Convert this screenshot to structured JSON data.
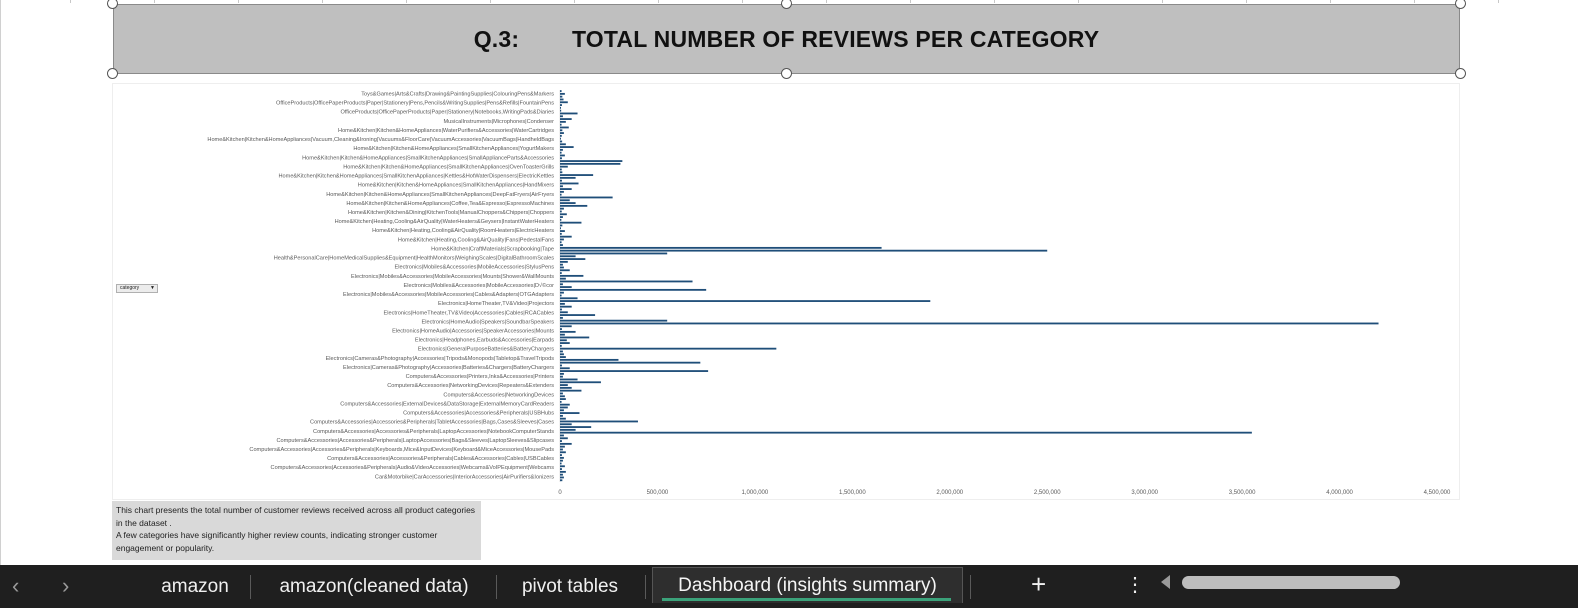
{
  "title": "Q.3:        TOTAL NUMBER OF REVIEWS PER CATEGORY",
  "filter_button": {
    "label": "category"
  },
  "note": {
    "line1": "This chart presents the total number of customer reviews received across all product categories in the dataset .",
    "line2": " A few categories have significantly higher review counts, indicating stronger customer engagement or popularity."
  },
  "sheet_tabs": [
    {
      "label": "amazon",
      "active": false
    },
    {
      "label": "amazon(cleaned data)",
      "active": false
    },
    {
      "label": "pivot tables",
      "active": false
    },
    {
      "label": "Dashboard (insights summary)",
      "active": true
    }
  ],
  "controls": {
    "prev_icon": "chevron-left-icon",
    "next_icon": "chevron-right-icon",
    "add_label": "+",
    "more_label": "⋮"
  },
  "colors": {
    "bar": "#1f4e79",
    "title_bg": "#bfbfbf",
    "tab_bar_bg": "#1f1f1f",
    "active_tab_underline": "#3ba27a"
  },
  "chart_data": {
    "type": "bar",
    "orientation": "horizontal",
    "title": "",
    "xlabel": "",
    "ylabel": "",
    "xlim": [
      0,
      4500000
    ],
    "x_ticks": [
      "0",
      "500,000",
      "1,000,000",
      "1,500,000",
      "2,000,000",
      "2,500,000",
      "3,000,000",
      "3,500,000",
      "4,000,000",
      "4,500,000"
    ],
    "x_tick_values": [
      0,
      500000,
      1000000,
      1500000,
      2000000,
      2500000,
      3000000,
      3500000,
      4000000,
      4500000
    ],
    "row_count": 140,
    "visible_labels": [
      "Toys&Games|Arts&Crafts|Drawing&PaintingSupplies|ColouringPens&Markers",
      "OfficeProducts|OfficePaperProducts|Paper|Stationery|Pens,Pencils&WritingSupplies|Pens&Refills|FountainPens",
      "OfficeProducts|OfficePaperProducts|Paper|Stationery|Notebooks,WritingPads&Diaries",
      "MusicalInstruments|Microphones|Condenser",
      "Home&Kitchen|Kitchen&HomeAppliances|WaterPurifiers&Accessories|WaterCartridges",
      "Home&Kitchen|Kitchen&HomeAppliances|Vacuum,Cleaning&Ironing|Vacuums&FloorCare|VacuumAccessories|VacuumBags|HandheldBags",
      "Home&Kitchen|Kitchen&HomeAppliances|SmallKitchenAppliances|YogurtMakers",
      "Home&Kitchen|Kitchen&HomeAppliances|SmallKitchenAppliances|SmallApplianceParts&Accessories",
      "Home&Kitchen|Kitchen&HomeAppliances|SmallKitchenAppliances|OvenToasterGrills",
      "Home&Kitchen|Kitchen&HomeAppliances|SmallKitchenAppliances|Kettles&HotWaterDispensers|ElectricKettles",
      "Home&Kitchen|Kitchen&HomeAppliances|SmallKitchenAppliances|HandMixers",
      "Home&Kitchen|Kitchen&HomeAppliances|SmallKitchenAppliances|DeepFatFryers|AirFryers",
      "Home&Kitchen|Kitchen&HomeAppliances|Coffee,Tea&Espresso|EspressoMachines",
      "Home&Kitchen|Kitchen&Dining|KitchenTools|ManualChoppers&Chippers|Choppers",
      "Home&Kitchen|Heating,Cooling&AirQuality|WaterHeaters&Geysers|InstantWaterHeaters",
      "Home&Kitchen|Heating,Cooling&AirQuality|RoomHeaters|ElectricHeaters",
      "Home&Kitchen|Heating,Cooling&AirQuality|Fans|PedestalFans",
      "Home&Kitchen|CraftMaterials|Scrapbooking|Tape",
      "Health&PersonalCare|HomeMedicalSupplies&Equipment|HealthMonitors|WeighingScales|DigitalBathroomScales",
      "Electronics|Mobiles&Accessories|MobileAccessories|StylusPens",
      "Electronics|Mobiles&Accessories|MobileAccessories|Mounts|Shower&WallMounts",
      "Electronics|Mobiles&Accessories|MobileAccessories|D√©cor",
      "Electronics|Mobiles&Accessories|MobileAccessories|Cables&Adapters|OTGAdapters",
      "Electronics|HomeTheater,TV&Video|Projectors",
      "Electronics|HomeTheater,TV&Video|Accessories|Cables|RCACables",
      "Electronics|HomeAudio|Speakers|SoundbarSpeakers",
      "Electronics|HomeAudio|Accessories|SpeakerAccessories|Mounts",
      "Electronics|Headphones,Earbuds&Accessories|Earpads",
      "Electronics|GeneralPurposeBatteries&BatteryChargers",
      "Electronics|Cameras&Photography|Accessories|Tripods&Monopods|Tabletop&TravelTripods",
      "Electronics|Cameras&Photography|Accessories|Batteries&Chargers|BatteryChargers",
      "Computers&Accessories|Printers,Inks&Accessories|Printers",
      "Computers&Accessories|NetworkingDevices|Repeaters&Extenders",
      "Computers&Accessories|NetworkingDevices",
      "Computers&Accessories|ExternalDevices&DataStorage|ExternalMemoryCardReaders",
      "Computers&Accessories|Accessories&Peripherals|USBHubs",
      "Computers&Accessories|Accessories&Peripherals|TabletAccessories|Bags,Cases&Sleeves|Cases",
      "Computers&Accessories|Accessories&Peripherals|LaptopAccessories|NotebookComputerStands",
      "Computers&Accessories|Accessories&Peripherals|LaptopAccessories|Bags&Sleeves|LaptopSleeves&Slipcases",
      "Computers&Accessories|Accessories&Peripherals|Keyboards,Mice&InputDevices|Keyboard&MiceAccessories|MousePads",
      "Computers&Accessories|Accessories&Peripherals|Cables&Accessories|Cables|USBCables",
      "Computers&Accessories|Accessories&Peripherals|Audio&VideoAccessories|Webcams&VoIPEquipment|Webcams",
      "Car&Motorbike|CarAccessories|InteriorAccessories|AirPurifiers&Ionizers"
    ],
    "values": [
      8000,
      25000,
      12000,
      18000,
      40000,
      10000,
      5000,
      6000,
      90000,
      15000,
      60000,
      30000,
      8000,
      45000,
      12000,
      20000,
      9000,
      5000,
      11000,
      30000,
      70000,
      15000,
      8000,
      25000,
      10000,
      320000,
      310000,
      40000,
      9000,
      12000,
      170000,
      80000,
      10000,
      95000,
      15000,
      60000,
      20000,
      8000,
      270000,
      50000,
      80000,
      140000,
      20000,
      9000,
      35000,
      15000,
      7000,
      110000,
      12000,
      5000,
      25000,
      9000,
      60000,
      20000,
      8000,
      15000,
      1650000,
      2500000,
      550000,
      80000,
      130000,
      40000,
      15000,
      20000,
      50000,
      9000,
      120000,
      30000,
      680000,
      15000,
      60000,
      750000,
      20000,
      8000,
      90000,
      1900000,
      25000,
      60000,
      10000,
      40000,
      180000,
      15000,
      550000,
      4200000,
      60000,
      10000,
      80000,
      25000,
      150000,
      35000,
      50000,
      9000,
      1110000,
      15000,
      20000,
      30000,
      300000,
      720000,
      10000,
      50000,
      760000,
      20000,
      15000,
      90000,
      210000,
      40000,
      60000,
      110000,
      15000,
      25000,
      30000,
      8000,
      50000,
      40000,
      20000,
      100000,
      15000,
      30000,
      400000,
      60000,
      160000,
      80000,
      3550000,
      20000,
      40000,
      10000,
      60000,
      25000,
      15000,
      30000,
      10000,
      20000,
      15000,
      8000,
      25000,
      10000,
      30000,
      15000,
      20000,
      12000
    ]
  }
}
